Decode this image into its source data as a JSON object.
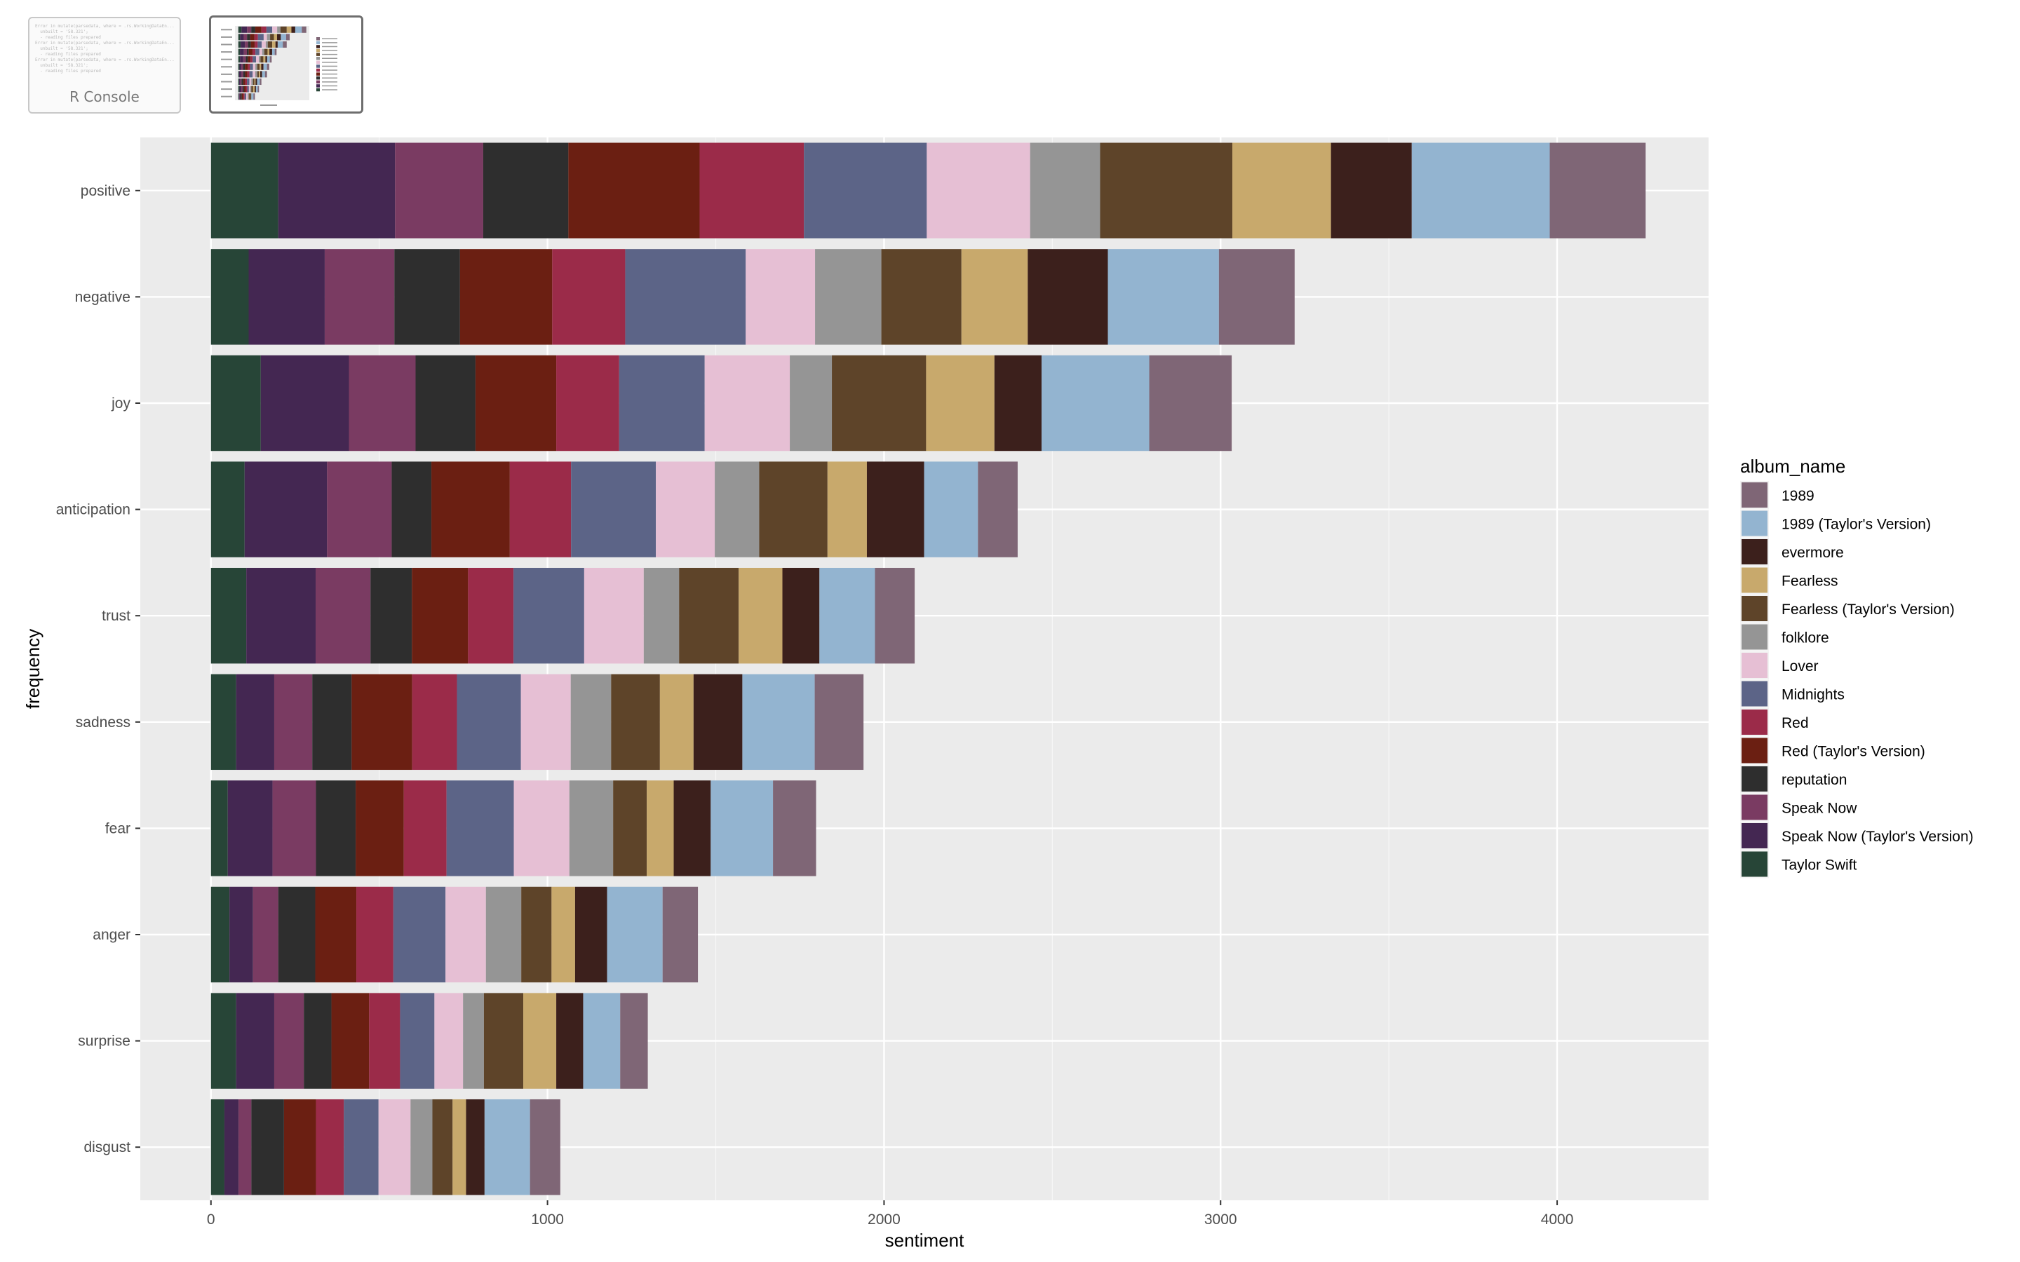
{
  "thumbnails": [
    {
      "label": "R Console",
      "lines": [
        "Error in mutate(parsedata, where = .rs.WorkingDataEn...",
        "  unbuilt = '58.321';",
        "  - reading files prepared",
        "Error in mutate(parsedata, where = .rs.WorkingDataEn...",
        "  unbuilt = '58.321';",
        "  - reading files prepared",
        "Error in mutate(parsedata, where = .rs.WorkingDataEn...",
        "  unbuilt = '58.321';",
        "  - reading files prepared"
      ]
    },
    {
      "label": "",
      "kind": "plot-preview"
    }
  ],
  "chart_data": {
    "type": "bar",
    "orientation": "horizontal",
    "stacked": true,
    "title": "",
    "xlabel": "sentiment",
    "ylabel": "frequency",
    "xlim": [
      -210,
      4450
    ],
    "x_ticks": [
      0,
      1000,
      2000,
      3000,
      4000
    ],
    "grid": true,
    "legend_title": "album_name",
    "legend_position": "right",
    "categories": [
      "positive",
      "negative",
      "joy",
      "anticipation",
      "trust",
      "sadness",
      "fear",
      "anger",
      "surprise",
      "disgust"
    ],
    "series": [
      {
        "name": "Taylor Swift",
        "color": "#274537",
        "values": [
          200,
          112,
          148,
          100,
          105,
          75,
          50,
          55,
          75,
          40
        ]
      },
      {
        "name": "Speak Now (Taylor's Version)",
        "color": "#442752",
        "values": [
          347,
          226,
          262,
          245,
          206,
          113,
          133,
          70,
          113,
          42
        ]
      },
      {
        "name": "Speak Now",
        "color": "#7a3b62",
        "values": [
          262,
          207,
          198,
          192,
          163,
          113,
          129,
          75,
          88,
          38
        ]
      },
      {
        "name": "reputation",
        "color": "#2e2e2e",
        "values": [
          253,
          195,
          178,
          118,
          123,
          117,
          118,
          110,
          82,
          97
        ]
      },
      {
        "name": "Red (Taylor's Version)",
        "color": "#6b1f12",
        "values": [
          390,
          274,
          240,
          233,
          167,
          180,
          143,
          122,
          112,
          95
        ]
      },
      {
        "name": "Red",
        "color": "#9b2b49",
        "values": [
          310,
          217,
          187,
          182,
          135,
          133,
          127,
          110,
          92,
          83
        ]
      },
      {
        "name": "Midnights",
        "color": "#5c6487",
        "values": [
          365,
          358,
          254,
          252,
          210,
          190,
          200,
          155,
          102,
          103
        ]
      },
      {
        "name": "Lover",
        "color": "#e6bfd4",
        "values": [
          307,
          206,
          253,
          175,
          177,
          148,
          165,
          120,
          85,
          95
        ]
      },
      {
        "name": "folklore",
        "color": "#959595",
        "values": [
          208,
          197,
          125,
          132,
          105,
          120,
          130,
          105,
          62,
          65
        ]
      },
      {
        "name": "Fearless (Taylor's Version)",
        "color": "#5e4429",
        "values": [
          393,
          238,
          280,
          203,
          177,
          145,
          100,
          90,
          117,
          60
        ]
      },
      {
        "name": "Fearless",
        "color": "#c8a96c",
        "values": [
          293,
          197,
          203,
          117,
          130,
          100,
          80,
          70,
          98,
          40
        ]
      },
      {
        "name": "evermore",
        "color": "#3c201c",
        "values": [
          240,
          238,
          140,
          170,
          110,
          145,
          110,
          95,
          80,
          55
        ]
      },
      {
        "name": "1989 (Taylor's Version)",
        "color": "#93b4d0",
        "values": [
          410,
          330,
          320,
          160,
          165,
          215,
          185,
          165,
          110,
          135
        ]
      },
      {
        "name": "1989",
        "color": "#7f6676",
        "values": [
          285,
          225,
          245,
          118,
          118,
          145,
          128,
          105,
          82,
          90
        ]
      }
    ]
  }
}
